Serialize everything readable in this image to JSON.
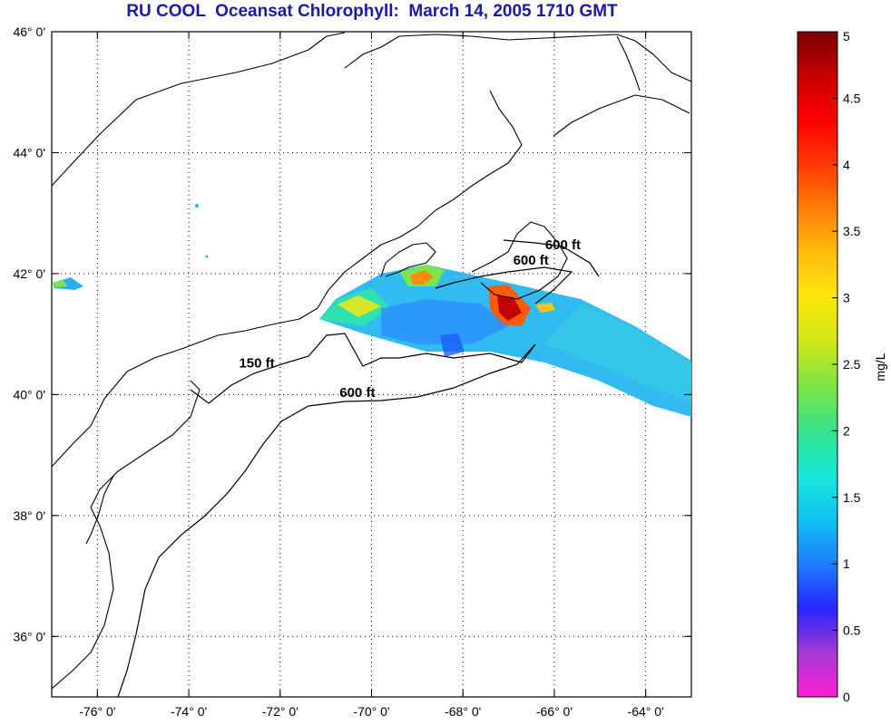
{
  "title": "RU COOL  Oceansat Chlorophyll:  March 14, 2005 1710 GMT",
  "map": {
    "lon_range": [
      -77,
      -63
    ],
    "lat_range": [
      35,
      46
    ],
    "x_ticks": [
      {
        "lon": -76,
        "label": "-76° 0'"
      },
      {
        "lon": -74,
        "label": "-74° 0'"
      },
      {
        "lon": -72,
        "label": "-72° 0'"
      },
      {
        "lon": -70,
        "label": "-70° 0'"
      },
      {
        "lon": -68,
        "label": "-68° 0'"
      },
      {
        "lon": -66,
        "label": "-66° 0'"
      },
      {
        "lon": -64,
        "label": "-64° 0'"
      }
    ],
    "y_ticks": [
      {
        "lat": 46,
        "label": "46° 0'"
      },
      {
        "lat": 44,
        "label": "44° 0'"
      },
      {
        "lat": 42,
        "label": "42° 0'"
      },
      {
        "lat": 40,
        "label": "40° 0'"
      },
      {
        "lat": 38,
        "label": "38° 0'"
      },
      {
        "lat": 36,
        "label": "36° 0'"
      }
    ],
    "grid": true,
    "depth_labels": [
      {
        "text": "150 ft",
        "lon": -72.9,
        "lat": 40.45
      },
      {
        "text": "600 ft",
        "lon": -70.7,
        "lat": 39.96
      },
      {
        "text": "600 ft",
        "lon": -66.9,
        "lat": 42.15
      },
      {
        "text": "600 ft",
        "lon": -66.2,
        "lat": 42.4
      }
    ]
  },
  "colorbar": {
    "unit": "mg/L",
    "range": [
      0,
      5
    ],
    "ticks": [
      "0",
      "0.5",
      "1",
      "1.5",
      "2",
      "2.5",
      "3",
      "3.5",
      "4",
      "4.5",
      "5"
    ],
    "colors": [
      "#ff1ed9",
      "#a43bd2",
      "#2626ff",
      "#1e7dff",
      "#11c2f0",
      "#18e8d8",
      "#34e38c",
      "#7ce445",
      "#cfe615",
      "#fbe70c",
      "#ffbe0e",
      "#ff7f06",
      "#ff3a03",
      "#ff0000",
      "#c80000",
      "#7a0000"
    ]
  }
}
